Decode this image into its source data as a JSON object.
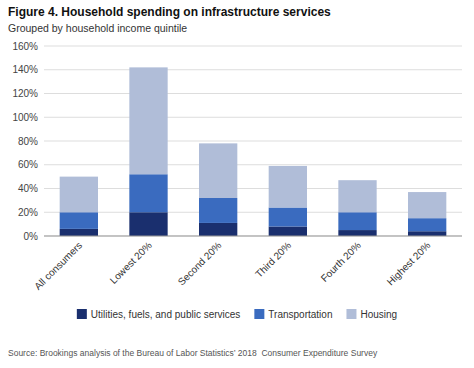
{
  "chart_data": {
    "type": "bar",
    "title": "Figure 4. Household spending on infrastructure services",
    "subtitle": "Grouped by household income quintile",
    "source": "Source: Brookings analysis of the Bureau of Labor Statistics’ 2018  Consumer Expenditure Survey",
    "categories": [
      "All consumers",
      "Lowest 20%",
      "Second 20%",
      "Third 20%",
      "Fourth 20%",
      "Highest 20%"
    ],
    "series": [
      {
        "name": "Utilities, fuels, and public services",
        "color": "#1a2f6e",
        "values": [
          6,
          20,
          11,
          8,
          5,
          4
        ]
      },
      {
        "name": "Transportation",
        "color": "#3a6bbf",
        "values": [
          14,
          32,
          21,
          16,
          15,
          11
        ]
      },
      {
        "name": "Housing",
        "color": "#b0bdd8",
        "values": [
          30,
          90,
          46,
          35,
          27,
          22
        ]
      }
    ],
    "stacked": true,
    "ylim": [
      0,
      160
    ],
    "yticks": [
      {
        "value": 0,
        "label": "0%"
      },
      {
        "value": 20,
        "label": "20%"
      },
      {
        "value": 40,
        "label": "40%"
      },
      {
        "value": 60,
        "label": "60%"
      },
      {
        "value": 80,
        "label": "80%"
      },
      {
        "value": 100,
        "label": "100%"
      },
      {
        "value": 120,
        "label": "120%"
      },
      {
        "value": 140,
        "label": "140%"
      },
      {
        "value": 160,
        "label": "160%"
      }
    ],
    "grid": true,
    "legend": "bottom"
  }
}
